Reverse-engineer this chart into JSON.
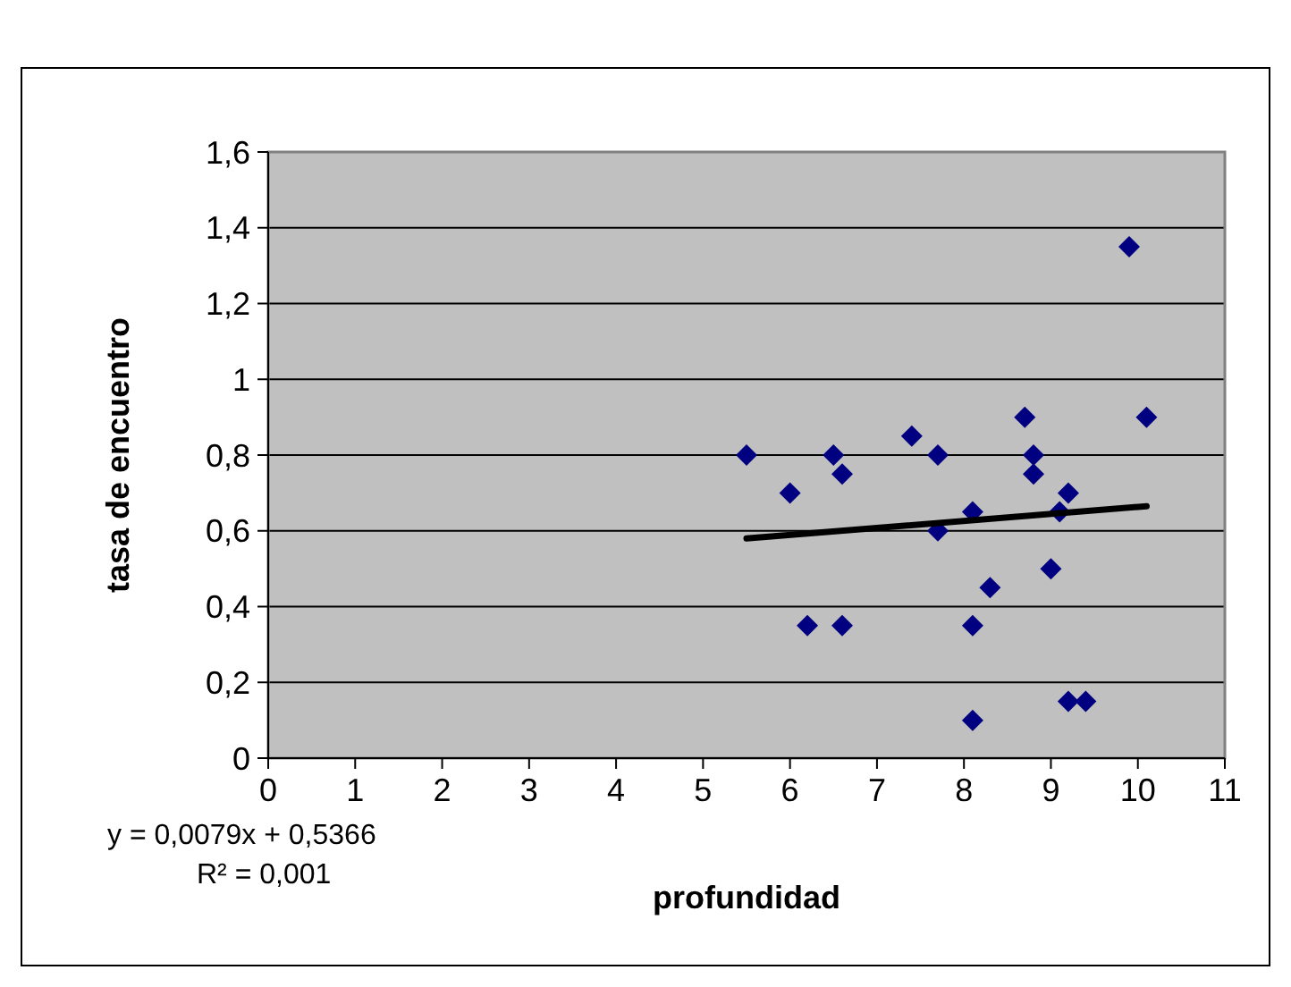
{
  "chart_data": {
    "type": "scatter",
    "xlabel": "profundidad",
    "ylabel": "tasa de encuentro",
    "series": [
      {
        "color": "#000080",
        "marker": "diamond",
        "x": [
          5.5,
          6.0,
          6.2,
          6.5,
          6.6,
          6.6,
          7.4,
          7.7,
          7.7,
          8.1,
          8.1,
          8.1,
          8.3,
          8.7,
          8.8,
          8.8,
          9.0,
          9.1,
          9.2,
          9.2,
          9.4,
          9.9,
          10.1
        ],
        "values": [
          0.8,
          0.7,
          0.35,
          0.8,
          0.75,
          0.35,
          0.85,
          0.8,
          0.6,
          0.65,
          0.35,
          0.1,
          0.45,
          0.9,
          0.8,
          0.75,
          0.5,
          0.65,
          0.7,
          0.15,
          0.15,
          1.35,
          0.9
        ]
      },
      {
        "type": "line",
        "color": "#000000",
        "marker": "none",
        "x": [
          5.5,
          10.1
        ],
        "values": [
          0.58,
          0.665
        ]
      }
    ],
    "xlim": [
      0,
      11
    ],
    "xticks": [
      0,
      1,
      2,
      3,
      4,
      5,
      6,
      7,
      8,
      9,
      10,
      11
    ],
    "ylim": [
      0,
      1.6
    ],
    "yticks": [
      0,
      {
        "value": 0.2,
        "label": "0,2"
      },
      {
        "value": 0.4,
        "label": "0,4"
      },
      {
        "value": 0.6,
        "label": "0,6"
      },
      {
        "value": 0.8,
        "label": "0,8"
      },
      1,
      {
        "value": 1.2,
        "label": "1,2"
      },
      {
        "value": 1.4,
        "label": "1,4"
      },
      {
        "value": 1.6,
        "label": "1,6"
      }
    ],
    "grid": "y",
    "annotations": [
      "y = 0,0079x + 0,5366",
      "R² = 0,001"
    ]
  }
}
